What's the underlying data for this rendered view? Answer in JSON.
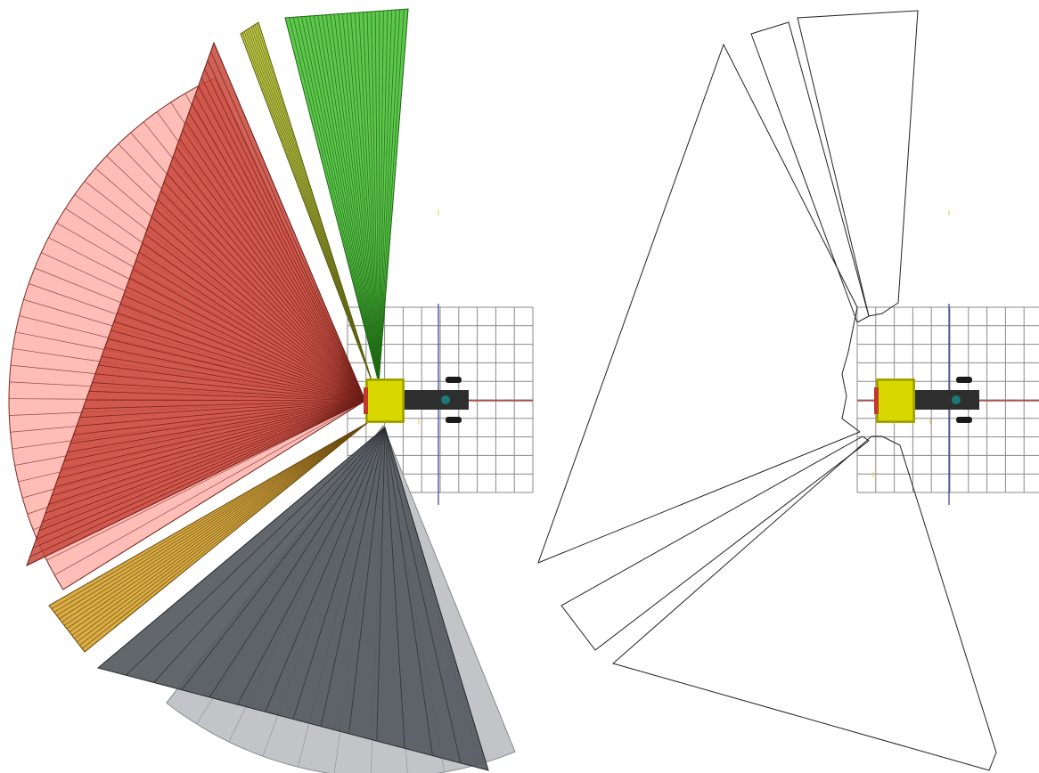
{
  "colors": {
    "background": "#ffffff",
    "grid_line": "#8a8a8a",
    "grid_axis_x": "#b03030",
    "grid_axis_y": "#3a3a9a",
    "robot_body": "#d8d800",
    "robot_body_shade": "#a8a800",
    "robot_arm": "#2e2e2e",
    "robot_wheel": "#1a1a1a",
    "robot_joint": "#1a7a7a",
    "outline": "#222222",
    "sector_red": "#c9473a",
    "sector_red_light": "#ffb6b0",
    "sector_olive": "#bcc93a",
    "sector_green": "#4cc23a",
    "sector_orange": "#d9a93a",
    "sector_grey": "#555a60",
    "sector_grey_light": "#bfc1c4"
  },
  "left_view": {
    "name": "shaded-sensor-sectors-view",
    "sectors": [
      {
        "id": "red-sector",
        "label": "red",
        "rays": 36
      },
      {
        "id": "olive-sector",
        "label": "olive",
        "rays": 10
      },
      {
        "id": "green-sector",
        "label": "green",
        "rays": 30
      },
      {
        "id": "orange-sector",
        "label": "orange",
        "rays": 14
      },
      {
        "id": "grey-sector",
        "label": "grey",
        "rays": 14
      }
    ]
  },
  "right_view": {
    "name": "outline-sensor-regions-view",
    "outlines": [
      "big-left-region",
      "olive-region",
      "green-region",
      "orange-region",
      "grey-region"
    ]
  }
}
